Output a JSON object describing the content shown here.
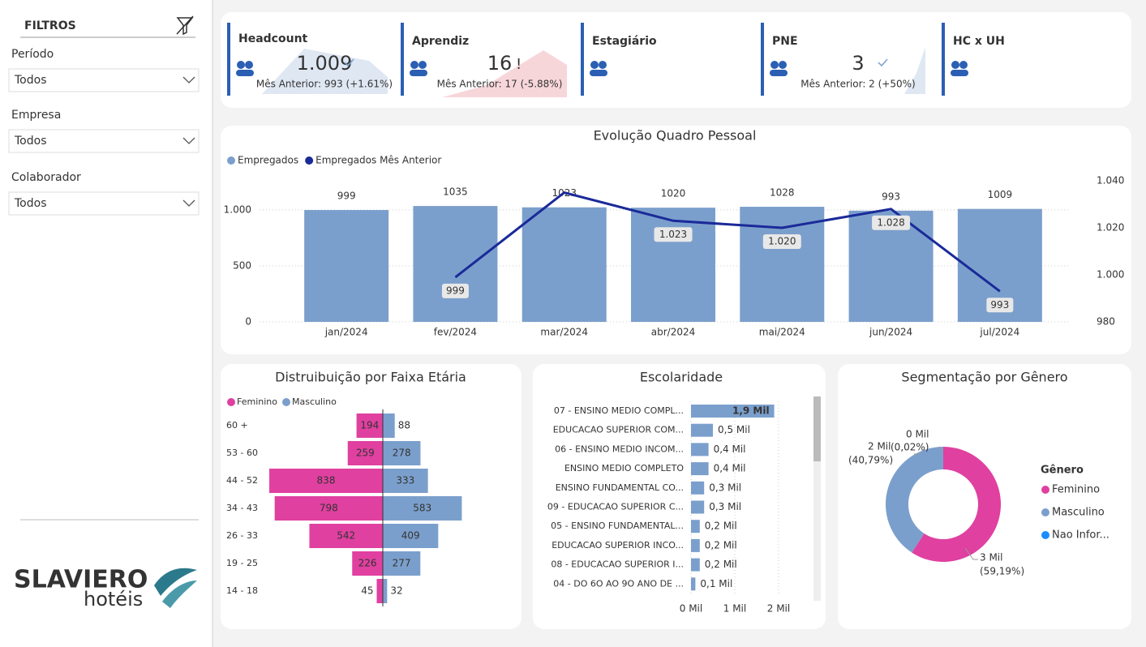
{
  "sidebar": {
    "title": "FILTROS",
    "filters": [
      {
        "label": "Período",
        "value": "Todos"
      },
      {
        "label": "Empresa",
        "value": "Todos"
      },
      {
        "label": "Colaborador",
        "value": "Todos"
      }
    ],
    "logo": {
      "brand": "SLAVIERO",
      "sub": "hotéis"
    }
  },
  "kpis": [
    {
      "title": "Headcount",
      "value": "1.009",
      "compare": "Mês Anterior: 993 (+1.61%)"
    },
    {
      "title": "Aprendiz",
      "value": "16",
      "compare": "Mês Anterior: 17 (-5.88%)"
    },
    {
      "title": "Estagiário"
    },
    {
      "title": "PNE",
      "value": "3",
      "compare": "Mês Anterior: 2 (+50%)"
    },
    {
      "title": "HC x UH"
    }
  ],
  "chart_data": [
    {
      "type": "bar",
      "title": "Evolução Quadro Pessoal",
      "categories": [
        "jan/2024",
        "fev/2024",
        "mar/2024",
        "abr/2024",
        "mai/2024",
        "jun/2024",
        "jul/2024"
      ],
      "series": [
        {
          "name": "Empregados",
          "color": "#7b9fcc",
          "values": [
            999,
            1035,
            1023,
            1020,
            1028,
            993,
            1009
          ]
        },
        {
          "name": "Empregados Mês Anterior",
          "color": "#1a2a99",
          "type": "line",
          "axis": "y2",
          "values": [
            null,
            999,
            1035,
            1023,
            1020,
            1028,
            993
          ],
          "value_labels": [
            null,
            "999",
            null,
            "1.023",
            "1.020",
            "1.028",
            "993"
          ]
        }
      ],
      "ylim": [
        0,
        1260
      ],
      "yticks": [
        0,
        500,
        {
          "value": 1000,
          "label": "1.000"
        }
      ],
      "y2lim": [
        980,
        1040
      ],
      "y2ticks": [
        980,
        {
          "value": 1000,
          "label": "1.000"
        },
        {
          "value": 1020,
          "label": "1.020"
        },
        {
          "value": 1040,
          "label": "1.040"
        }
      ],
      "grid": true,
      "legend": "top-left"
    },
    {
      "type": "pyramid",
      "title": "Distruibuição por Faixa Etária",
      "categories": [
        "60 +",
        "53 - 60",
        "44 - 52",
        "34 - 43",
        "26 - 33",
        "19 - 25",
        "14 - 18"
      ],
      "series": [
        {
          "name": "Feminino",
          "color": "#e040a0",
          "values": [
            194,
            259,
            838,
            798,
            542,
            226,
            45
          ]
        },
        {
          "name": "Masculino",
          "color": "#7b9fcc",
          "values": [
            88,
            278,
            333,
            583,
            409,
            277,
            32
          ]
        }
      ],
      "legend": "top-left"
    },
    {
      "type": "hbar",
      "title": "Escolaridade",
      "categories": [
        "07 - ENSINO MEDIO COMPL...",
        "EDUCACAO SUPERIOR COM...",
        "06 - ENSINO MEDIO INCOM...",
        "ENSINO MEDIO COMPLETO",
        "ENSINO FUNDAMENTAL CO...",
        "09 - EDUCACAO SUPERIOR C...",
        "05 - ENSINO FUNDAMENTAL...",
        "EDUCACAO SUPERIOR INCO...",
        "08 - EDUCACAO SUPERIOR I...",
        "04 - DO 6O AO 9O ANO DE ..."
      ],
      "values": [
        1.9,
        0.5,
        0.4,
        0.4,
        0.3,
        0.3,
        0.2,
        0.2,
        0.2,
        0.1
      ],
      "value_labels": [
        "1,9 Mil",
        "0,5 Mil",
        "0,4 Mil",
        "0,4 Mil",
        "0,3 Mil",
        "0,3 Mil",
        "0,2 Mil",
        "0,2 Mil",
        "0,2 Mil",
        "0,1 Mil"
      ],
      "color": "#7b9fcc",
      "xlim": [
        0,
        2
      ],
      "xticks": [
        {
          "value": 0,
          "label": "0 Mil"
        },
        {
          "value": 1,
          "label": "1 Mil"
        },
        {
          "value": 2,
          "label": "2 Mil"
        }
      ],
      "grid": true
    },
    {
      "type": "donut",
      "title": "Segmentação por Gênero",
      "legend_title": "Gênero",
      "categories": [
        "Feminino",
        "Masculino",
        "Nao Infor..."
      ],
      "values": [
        59.19,
        40.79,
        0.02
      ],
      "value_labels": [
        "(59,19%)",
        "(40,79%)",
        "(0,02%)"
      ],
      "amount_labels": [
        "3 Mil",
        "2 Mil",
        "0 Mil"
      ],
      "colors": [
        "#e040a0",
        "#7b9fcc",
        "#1a8cff"
      ],
      "legend": "right"
    }
  ]
}
